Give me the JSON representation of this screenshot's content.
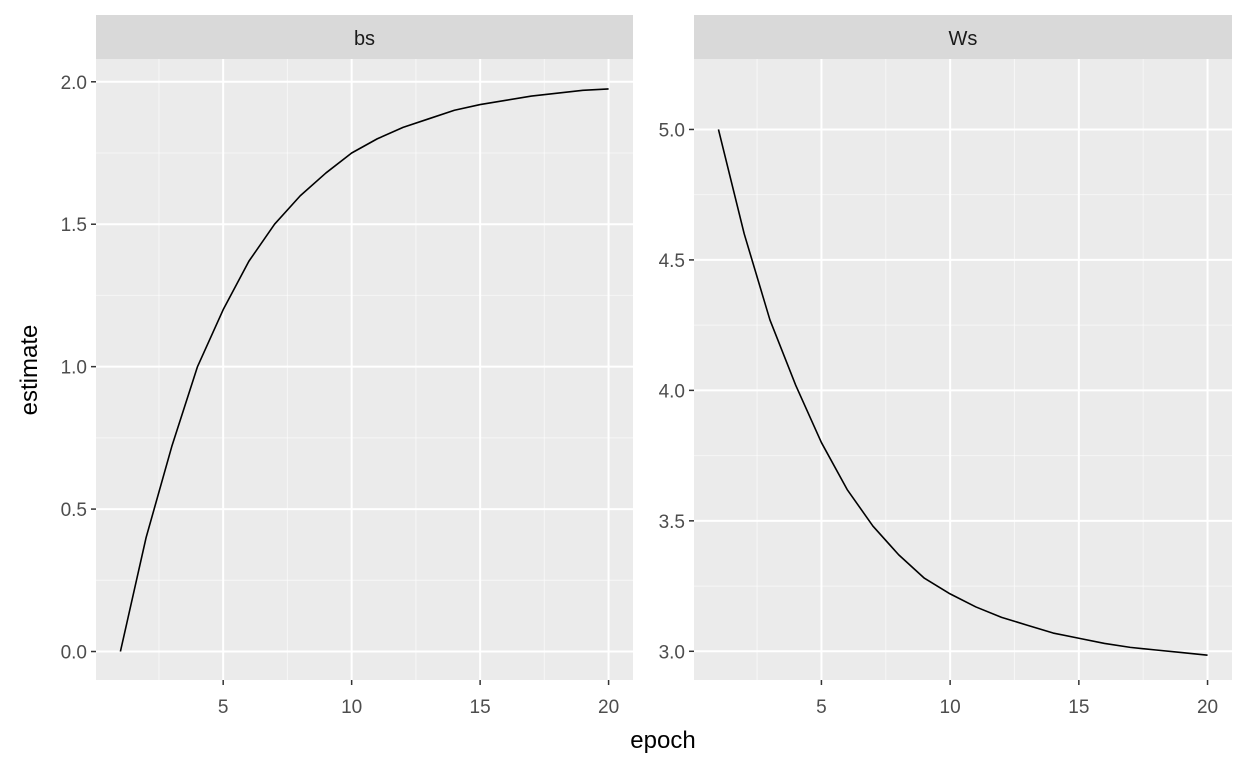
{
  "chart_data": {
    "type": "line",
    "xlabel": "epoch",
    "ylabel": "estimate",
    "grid": true,
    "legend": "none",
    "colors": {
      "panel_background": "#ebebeb",
      "strip_background": "#d9d9d9",
      "grid_major": "#ffffff",
      "line": "#000000"
    },
    "x_ticks": [
      5,
      10,
      15,
      20
    ],
    "xlim": [
      0.05,
      20.95
    ],
    "panels": [
      {
        "name": "bs",
        "ylim": [
          -0.1,
          2.08
        ],
        "y_ticks": [
          "0.0",
          "0.5",
          "1.0",
          "1.5",
          "2.0"
        ],
        "y_tick_values": [
          0.0,
          0.5,
          1.0,
          1.5,
          2.0
        ],
        "x": [
          1,
          2,
          3,
          4,
          5,
          6,
          7,
          8,
          9,
          10,
          11,
          12,
          13,
          14,
          15,
          16,
          17,
          18,
          19,
          20
        ],
        "y": [
          0.0,
          0.4,
          0.72,
          1.0,
          1.2,
          1.37,
          1.5,
          1.6,
          1.68,
          1.75,
          1.8,
          1.84,
          1.87,
          1.9,
          1.92,
          1.935,
          1.95,
          1.96,
          1.97,
          1.975
        ]
      },
      {
        "name": "Ws",
        "ylim": [
          2.89,
          5.27
        ],
        "y_ticks": [
          "3.0",
          "3.5",
          "4.0",
          "4.5",
          "5.0"
        ],
        "y_tick_values": [
          3.0,
          3.5,
          4.0,
          4.5,
          5.0
        ],
        "x": [
          1,
          2,
          3,
          4,
          5,
          6,
          7,
          8,
          9,
          10,
          11,
          12,
          13,
          14,
          15,
          16,
          17,
          18,
          19,
          20
        ],
        "y": [
          5.0,
          4.6,
          4.27,
          4.02,
          3.8,
          3.62,
          3.48,
          3.37,
          3.28,
          3.22,
          3.17,
          3.13,
          3.1,
          3.07,
          3.05,
          3.03,
          3.015,
          3.005,
          2.995,
          2.985
        ]
      }
    ]
  }
}
